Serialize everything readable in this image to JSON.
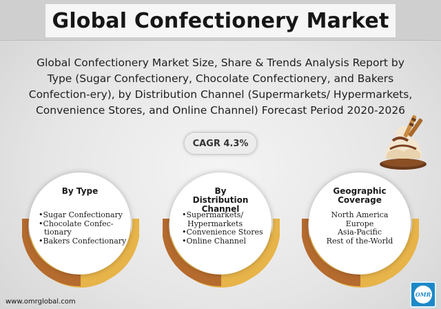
{
  "header": {
    "title": "Global Confectionery Market"
  },
  "subtitle": "Global Confectionery Market Size, Share & Trends Analysis Report by Type (Sugar Confectionery, Chocolate Confectionery, and Bakers Confection-ery), by Distribution Channel (Supermarkets/ Hypermarkets, Convenience Stores, and Online Channel) Forecast Period 2020-2026",
  "cagr": "CAGR 4.3%",
  "cards": [
    {
      "heading": "By Type",
      "items": [
        "Sugar Confectionary",
        "Chocolate Confec-tionary",
        "Bakers Confectionary"
      ]
    },
    {
      "heading": "By Distribution Channel",
      "items": [
        "Supermarkets/ Hypermarkets",
        "Convenience Stores",
        "Online Channel"
      ]
    },
    {
      "heading": "Geographic Coverage",
      "items": [
        "North America",
        "Europe",
        "Asia-Pacific",
        "Rest of the-World"
      ]
    }
  ],
  "footer": {
    "url": "www.omrglobal.com",
    "logo_text": "OMR"
  },
  "icons": {
    "dessert": "ice-cream-sundae-icon"
  },
  "colors": {
    "arc_brown": "#b56b2e",
    "arc_gold": "#e7b44a",
    "logo_blue": "#1e88c8"
  }
}
